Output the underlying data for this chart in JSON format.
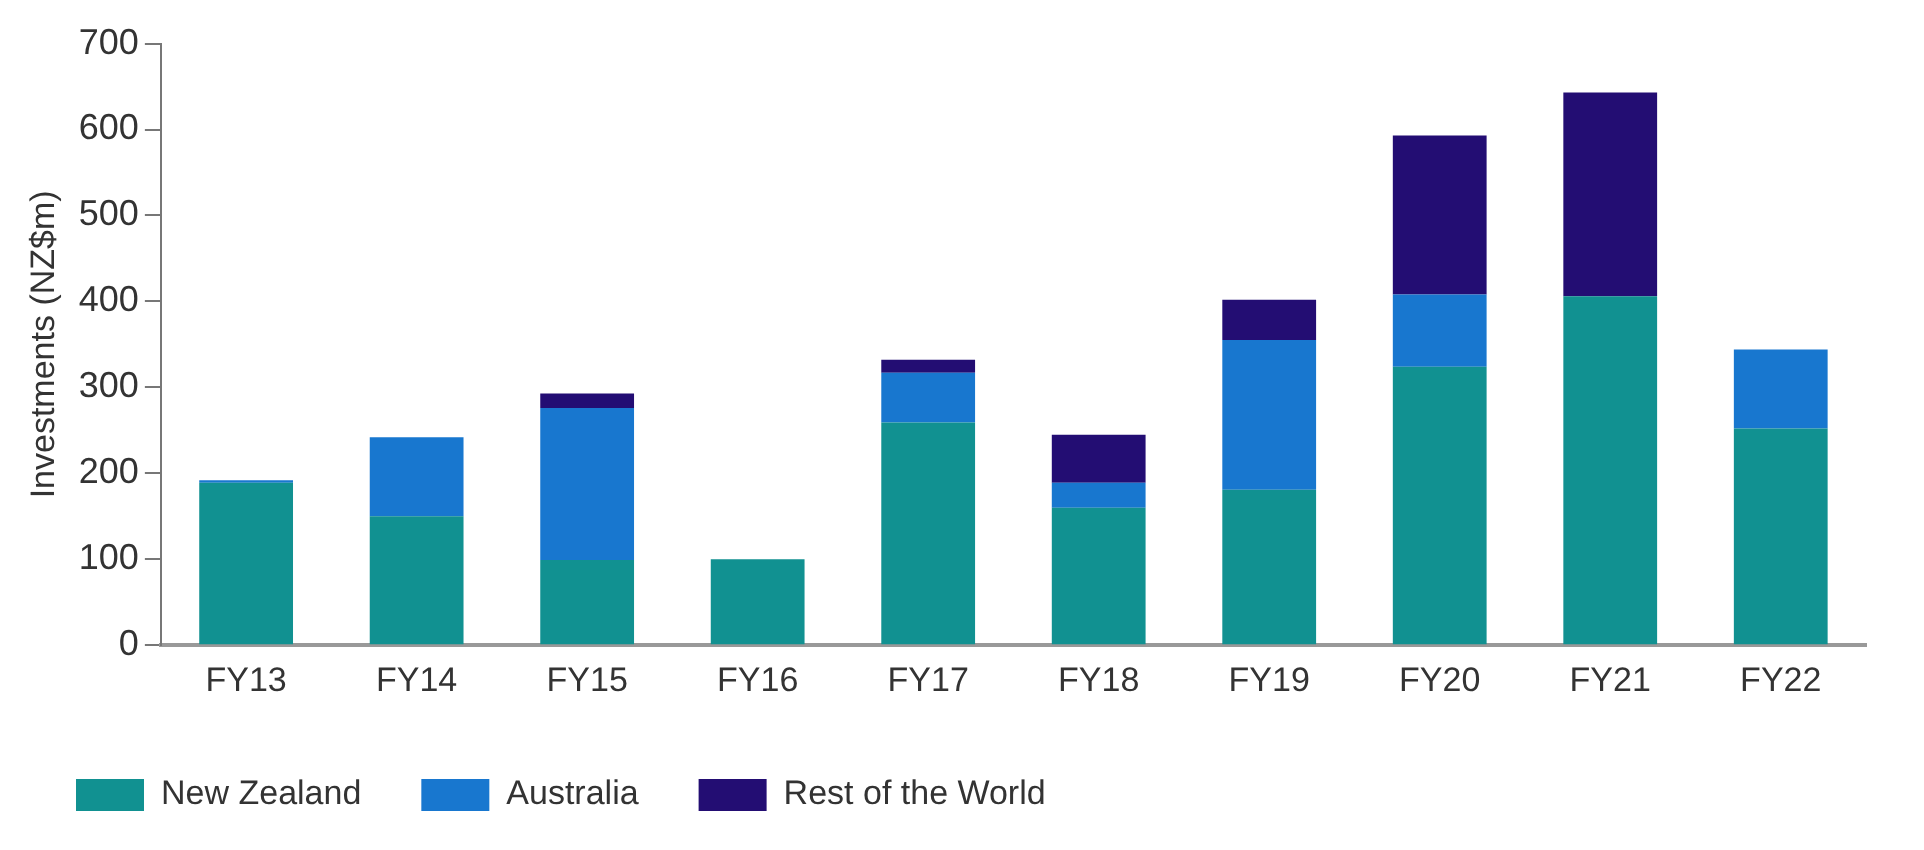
{
  "chart_data": {
    "type": "bar",
    "stacked": true,
    "ylabel": "Investments (NZ$m)",
    "categories": [
      "FY13",
      "FY14",
      "FY15",
      "FY16",
      "FY17",
      "FY18",
      "FY19",
      "FY20",
      "FY21",
      "FY22"
    ],
    "series": [
      {
        "name": "New Zealand",
        "color": "#119191",
        "values": [
          189,
          150,
          99,
          100,
          259,
          160,
          181,
          324,
          406,
          252
        ]
      },
      {
        "name": "Australia",
        "color": "#1877cf",
        "values": [
          3,
          92,
          177,
          0,
          58,
          29,
          174,
          84,
          0,
          92
        ]
      },
      {
        "name": "Rest of the World",
        "color": "#230d73",
        "values": [
          0,
          0,
          17,
          0,
          15,
          56,
          47,
          185,
          237,
          0
        ]
      }
    ],
    "ylim": [
      0,
      700
    ],
    "yticks": [
      0,
      100,
      200,
      300,
      400,
      500,
      600,
      700
    ],
    "grid": false,
    "legend": "bottom left"
  }
}
